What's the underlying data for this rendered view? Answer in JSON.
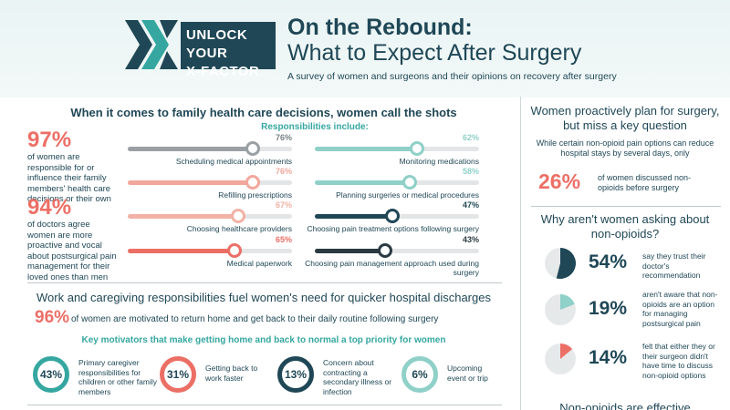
{
  "header": {
    "logo_line1": "UNLOCK YOUR",
    "logo_line2": "X-FACTOR",
    "title_line1": "On the Rebound:",
    "title_line2": "What to Expect After Surgery",
    "subtitle": "A survey of women and surgeons and their opinions on recovery after surgery"
  },
  "section1": {
    "title": "When it comes to family health care decisions, women call the shots",
    "responsibilities_title": "Responsibilities include:",
    "stats": [
      {
        "value": "97%",
        "text": "of women are responsible for or influence their family members' health care decisions or their own"
      },
      {
        "value": "94%",
        "text": "of doctors agree women are more proactive and vocal about postsurgical pain management for their loved ones than men"
      }
    ],
    "bars": [
      {
        "label": "Scheduling medical appointments",
        "percent": 76,
        "percent_label": "76%",
        "color": "#9aa0a3"
      },
      {
        "label": "Monitoring medications",
        "percent": 62,
        "percent_label": "62%",
        "color": "#8fd0c8"
      },
      {
        "label": "Refilling prescriptions",
        "percent": 76,
        "percent_label": "76%",
        "color": "#f2a79c"
      },
      {
        "label": "Planning surgeries or medical procedures",
        "percent": 58,
        "percent_label": "58%",
        "color": "#8fd0c8"
      },
      {
        "label": "Choosing healthcare providers",
        "percent": 67,
        "percent_label": "67%",
        "color": "#f2b2a6"
      },
      {
        "label": "Choosing pain treatment options following surgery",
        "percent": 47,
        "percent_label": "47%",
        "color": "#1f4756"
      },
      {
        "label": "Medical paperwork",
        "percent": 65,
        "percent_label": "65%",
        "color": "#ec6f66"
      },
      {
        "label": "Choosing pain management approach used during surgery",
        "percent": 43,
        "percent_label": "43%",
        "color": "#2b3a42"
      }
    ]
  },
  "section2": {
    "title": "Work and caregiving responsibilities fuel women's need for quicker hospital discharges",
    "pct": "96%",
    "pct_text": "of women are motivated to return home and get back to their daily routine following surgery",
    "key_title": "Key motivators that make getting home and back to normal a top priority for women",
    "motivators": [
      {
        "value": "43%",
        "text": "Primary caregiver responsibilities for children or other family members",
        "color": "#35a7a0"
      },
      {
        "value": "31%",
        "text": "Getting back to work faster",
        "color": "#ec6f66"
      },
      {
        "value": "13%",
        "text": "Concern about contracting a secondary illness or infection",
        "color": "#1f4756"
      },
      {
        "value": "6%",
        "text": "Upcoming event or trip",
        "color": "#8fd0c8"
      }
    ]
  },
  "right": {
    "title1": "Women proactively plan for surgery, but miss a key question",
    "text1": "While certain non-opioid pain options can reduce hospital stays by several days, only",
    "pct26": "26%",
    "text26": "of women discussed non-opioids before surgery",
    "title2": "Why aren't women asking about non-opioids?",
    "reasons": [
      {
        "value": "54%",
        "fraction": 0.54,
        "text": "say they trust their doctor's recommendation",
        "color": "#1f4756"
      },
      {
        "value": "19%",
        "fraction": 0.19,
        "text": "aren't aware that non-opioids are an option for managing postsurgical pain",
        "color": "#8fd0c8"
      },
      {
        "value": "14%",
        "fraction": 0.14,
        "text": "felt that either they or their surgeon didn't have time to discuss non-opioid options",
        "color": "#ec6f66"
      }
    ],
    "footer": "Non-opioids are effective"
  }
}
